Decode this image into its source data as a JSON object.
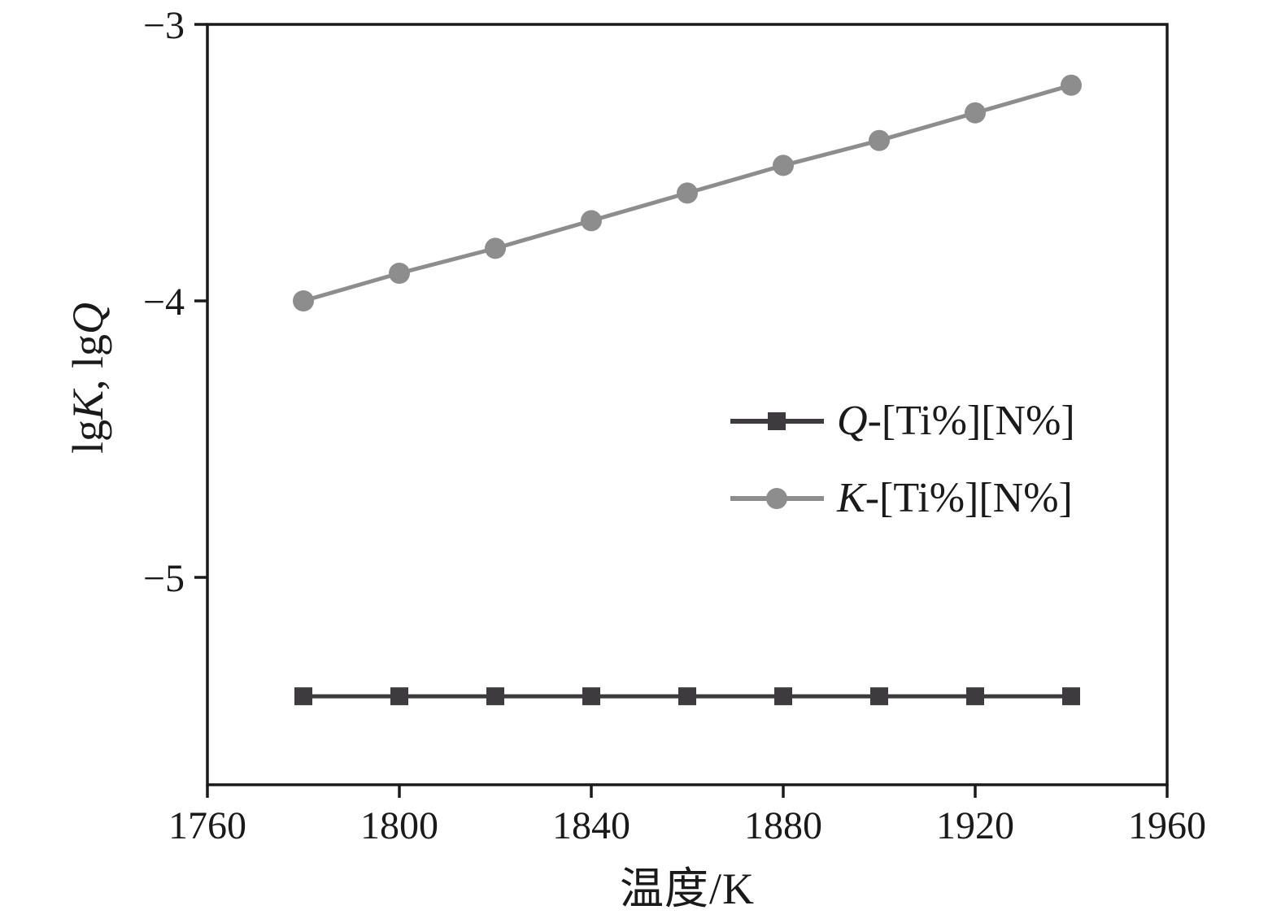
{
  "chart_data": {
    "type": "line",
    "x": [
      1780,
      1800,
      1820,
      1840,
      1860,
      1880,
      1900,
      1920,
      1940
    ],
    "series": [
      {
        "name": "Q-[Ti%][N%]",
        "marker": "square",
        "color": "#3d3b3e",
        "values": [
          -5.43,
          -5.43,
          -5.43,
          -5.43,
          -5.43,
          -5.43,
          -5.43,
          -5.43,
          -5.43
        ]
      },
      {
        "name": "K-[Ti%][N%]",
        "marker": "circle",
        "color": "#8d8d8d",
        "values": [
          -4.0,
          -3.9,
          -3.81,
          -3.71,
          -3.61,
          -3.51,
          -3.42,
          -3.32,
          -3.22
        ]
      }
    ],
    "title": "",
    "xlabel": "温度/K",
    "ylabel": "lgK, lgQ",
    "xlim": [
      1760,
      1960
    ],
    "ylim": [
      -5.75,
      -3.0
    ],
    "xticks": [
      1760,
      1800,
      1840,
      1880,
      1920,
      1960
    ],
    "xtick_labels": [
      "1760",
      "1800",
      "1840",
      "1880",
      "1920",
      "1960"
    ],
    "yticks": [
      -3,
      -4,
      -5
    ],
    "ytick_labels": [
      "−3",
      "−4",
      "−5"
    ],
    "grid": false,
    "legend_position": "center-right-inside",
    "axis_color": "#1a1a1a"
  },
  "axes": {
    "xlabel": "温度/K",
    "ylabel_parts": {
      "p1": "lg",
      "p2": "K",
      "p3": ", lg",
      "p4": "Q"
    }
  },
  "legend": {
    "items": [
      {
        "prefix": "Q",
        "rest": "-[Ti%][N%]"
      },
      {
        "prefix": "K",
        "rest": "-[Ti%][N%]"
      }
    ]
  }
}
